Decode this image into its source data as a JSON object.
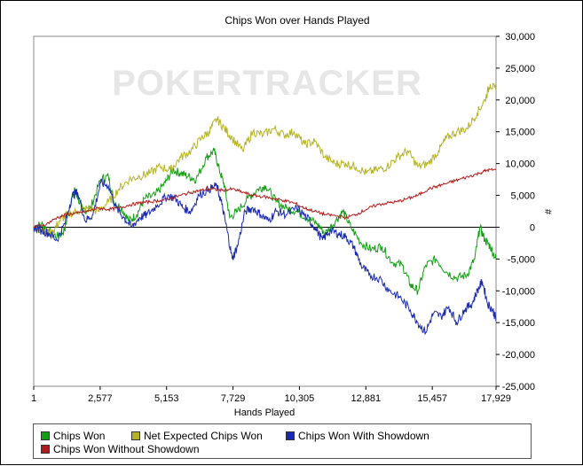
{
  "watermark": "POKERTRACKER",
  "colors": {
    "chips_won": "#11a011",
    "net_expected": "#b5b320",
    "with_showdown": "#1a2ab0",
    "without_showdown": "#b21b1b"
  },
  "chart_data": {
    "type": "line",
    "title": "Chips Won over Hands Played",
    "xlabel": "Hands Played",
    "ylabel": "#",
    "xlim": [
      1,
      17929
    ],
    "ylim": [
      -25000,
      30000
    ],
    "y_axis_side": "right",
    "grid": false,
    "legend_position": "bottom",
    "x_ticks": [
      1,
      2577,
      5153,
      7729,
      10305,
      12881,
      15457,
      17929
    ],
    "x_tick_labels": [
      "1",
      "2,577",
      "5,153",
      "7,729",
      "10,305",
      "12,881",
      "15,457",
      "17,929"
    ],
    "y_ticks": [
      30000,
      25000,
      20000,
      15000,
      10000,
      5000,
      0,
      -5000,
      -10000,
      -15000,
      -20000,
      -25000
    ],
    "y_tick_labels": [
      "30,000",
      "25,000",
      "20,000",
      "15,000",
      "10,000",
      "5,000",
      "0",
      "-5,000",
      "-10,000",
      "-15,000",
      "-20,000",
      "-25,000"
    ],
    "series": [
      {
        "name": "Chips Won",
        "color": "#11a011",
        "points": [
          [
            1,
            0
          ],
          [
            300,
            500
          ],
          [
            600,
            -600
          ],
          [
            900,
            -1500
          ],
          [
            1200,
            -500
          ],
          [
            1400,
            3500
          ],
          [
            1600,
            6000
          ],
          [
            1900,
            2500
          ],
          [
            2200,
            3000
          ],
          [
            2600,
            7500
          ],
          [
            2900,
            8000
          ],
          [
            3100,
            4000
          ],
          [
            3400,
            3000
          ],
          [
            3700,
            1000
          ],
          [
            4000,
            2000
          ],
          [
            4300,
            4500
          ],
          [
            4700,
            5000
          ],
          [
            5100,
            7000
          ],
          [
            5400,
            9000
          ],
          [
            5700,
            8500
          ],
          [
            6000,
            8000
          ],
          [
            6300,
            7500
          ],
          [
            6700,
            11000
          ],
          [
            7000,
            12000
          ],
          [
            7200,
            9000
          ],
          [
            7400,
            6500
          ],
          [
            7600,
            1500
          ],
          [
            7900,
            2500
          ],
          [
            8300,
            4500
          ],
          [
            8700,
            6000
          ],
          [
            9000,
            6500
          ],
          [
            9400,
            4000
          ],
          [
            9800,
            3000
          ],
          [
            10200,
            2500
          ],
          [
            10600,
            1500
          ],
          [
            11000,
            500
          ],
          [
            11300,
            -1000
          ],
          [
            11700,
            1000
          ],
          [
            12000,
            2500
          ],
          [
            12300,
            0
          ],
          [
            12700,
            -2500
          ],
          [
            13100,
            -3500
          ],
          [
            13500,
            -3000
          ],
          [
            13900,
            -5500
          ],
          [
            14300,
            -6000
          ],
          [
            14600,
            -9000
          ],
          [
            14900,
            -10000
          ],
          [
            15200,
            -6000
          ],
          [
            15600,
            -5000
          ],
          [
            16000,
            -7000
          ],
          [
            16400,
            -8000
          ],
          [
            16800,
            -7500
          ],
          [
            17100,
            -5000
          ],
          [
            17300,
            0
          ],
          [
            17500,
            -2000
          ],
          [
            17700,
            -3000
          ],
          [
            17929,
            -5000
          ]
        ]
      },
      {
        "name": "Net Expected Chips Won",
        "color": "#b5b320",
        "points": [
          [
            1,
            0
          ],
          [
            400,
            -500
          ],
          [
            700,
            -1000
          ],
          [
            1000,
            1000
          ],
          [
            1300,
            2000
          ],
          [
            1700,
            2500
          ],
          [
            2100,
            3000
          ],
          [
            2500,
            2500
          ],
          [
            2900,
            4000
          ],
          [
            3300,
            6000
          ],
          [
            3700,
            7500
          ],
          [
            4100,
            8000
          ],
          [
            4500,
            8500
          ],
          [
            4900,
            9500
          ],
          [
            5300,
            9000
          ],
          [
            5700,
            11000
          ],
          [
            6100,
            12000
          ],
          [
            6500,
            14000
          ],
          [
            6800,
            15000
          ],
          [
            7100,
            17000
          ],
          [
            7400,
            15500
          ],
          [
            7700,
            14000
          ],
          [
            8100,
            12000
          ],
          [
            8500,
            15000
          ],
          [
            8900,
            14500
          ],
          [
            9300,
            15500
          ],
          [
            9700,
            14500
          ],
          [
            10100,
            15000
          ],
          [
            10500,
            13000
          ],
          [
            10900,
            13500
          ],
          [
            11300,
            11000
          ],
          [
            11700,
            10000
          ],
          [
            12100,
            10000
          ],
          [
            12500,
            9500
          ],
          [
            12900,
            8500
          ],
          [
            13300,
            9000
          ],
          [
            13700,
            9500
          ],
          [
            14100,
            11000
          ],
          [
            14500,
            12000
          ],
          [
            14900,
            9500
          ],
          [
            15300,
            10000
          ],
          [
            15700,
            12000
          ],
          [
            16000,
            14000
          ],
          [
            16400,
            15000
          ],
          [
            16800,
            15500
          ],
          [
            17200,
            18000
          ],
          [
            17500,
            20000
          ],
          [
            17700,
            22500
          ],
          [
            17929,
            21500
          ]
        ]
      },
      {
        "name": "Chips Won With Showdown",
        "color": "#1a2ab0",
        "points": [
          [
            1,
            0
          ],
          [
            300,
            -500
          ],
          [
            600,
            -1000
          ],
          [
            900,
            -2000
          ],
          [
            1200,
            500
          ],
          [
            1500,
            5000
          ],
          [
            1700,
            5500
          ],
          [
            2000,
            1000
          ],
          [
            2300,
            2000
          ],
          [
            2600,
            7000
          ],
          [
            2900,
            6500
          ],
          [
            3200,
            3000
          ],
          [
            3500,
            1500
          ],
          [
            3800,
            0
          ],
          [
            4100,
            1500
          ],
          [
            4400,
            2000
          ],
          [
            4800,
            3500
          ],
          [
            5200,
            5000
          ],
          [
            5500,
            4500
          ],
          [
            5800,
            3000
          ],
          [
            6100,
            2500
          ],
          [
            6400,
            5000
          ],
          [
            6800,
            6000
          ],
          [
            7100,
            6500
          ],
          [
            7300,
            3500
          ],
          [
            7500,
            -500
          ],
          [
            7700,
            -5000
          ],
          [
            7900,
            -3000
          ],
          [
            8200,
            2500
          ],
          [
            8500,
            3000
          ],
          [
            8800,
            2000
          ],
          [
            9100,
            1000
          ],
          [
            9400,
            2500
          ],
          [
            9800,
            2000
          ],
          [
            10200,
            3000
          ],
          [
            10600,
            1500
          ],
          [
            10900,
            0
          ],
          [
            11200,
            -2000
          ],
          [
            11500,
            -500
          ],
          [
            11800,
            -1000
          ],
          [
            12100,
            -1500
          ],
          [
            12400,
            -3000
          ],
          [
            12700,
            -6000
          ],
          [
            13000,
            -7500
          ],
          [
            13400,
            -8000
          ],
          [
            13800,
            -10000
          ],
          [
            14200,
            -11000
          ],
          [
            14600,
            -13000
          ],
          [
            14900,
            -15000
          ],
          [
            15200,
            -16500
          ],
          [
            15500,
            -13500
          ],
          [
            15800,
            -14000
          ],
          [
            16100,
            -12500
          ],
          [
            16400,
            -15000
          ],
          [
            16700,
            -13000
          ],
          [
            17000,
            -12000
          ],
          [
            17200,
            -10000
          ],
          [
            17400,
            -8500
          ],
          [
            17600,
            -12000
          ],
          [
            17800,
            -13000
          ],
          [
            17929,
            -14500
          ]
        ]
      },
      {
        "name": "Chips Won Without Showdown",
        "color": "#b21b1b",
        "points": [
          [
            1,
            0
          ],
          [
            500,
            500
          ],
          [
            900,
            1500
          ],
          [
            1300,
            2000
          ],
          [
            1700,
            2200
          ],
          [
            2100,
            2500
          ],
          [
            2500,
            3000
          ],
          [
            2900,
            2800
          ],
          [
            3300,
            3000
          ],
          [
            3700,
            3500
          ],
          [
            4100,
            3800
          ],
          [
            4500,
            4000
          ],
          [
            4900,
            4200
          ],
          [
            5300,
            4500
          ],
          [
            5700,
            5000
          ],
          [
            6100,
            5500
          ],
          [
            6500,
            5800
          ],
          [
            6900,
            6000
          ],
          [
            7300,
            5800
          ],
          [
            7700,
            6000
          ],
          [
            8100,
            5500
          ],
          [
            8500,
            5000
          ],
          [
            8900,
            4800
          ],
          [
            9300,
            4500
          ],
          [
            9700,
            4200
          ],
          [
            10100,
            3800
          ],
          [
            10500,
            3000
          ],
          [
            10900,
            2500
          ],
          [
            11300,
            2000
          ],
          [
            11700,
            1800
          ],
          [
            12100,
            1500
          ],
          [
            12500,
            2000
          ],
          [
            12900,
            2800
          ],
          [
            13300,
            3500
          ],
          [
            13700,
            3800
          ],
          [
            14100,
            4000
          ],
          [
            14500,
            4500
          ],
          [
            14900,
            5000
          ],
          [
            15300,
            6000
          ],
          [
            15700,
            6500
          ],
          [
            16100,
            7000
          ],
          [
            16500,
            7500
          ],
          [
            16900,
            8000
          ],
          [
            17300,
            8500
          ],
          [
            17600,
            9000
          ],
          [
            17929,
            9000
          ]
        ]
      }
    ]
  },
  "legend": {
    "items": [
      {
        "label": "Chips Won",
        "color": "#11a011"
      },
      {
        "label": "Net Expected Chips Won",
        "color": "#b5b320"
      },
      {
        "label": "Chips Won With Showdown",
        "color": "#1a2ab0"
      },
      {
        "label": "Chips Won Without Showdown",
        "color": "#b21b1b"
      }
    ]
  }
}
